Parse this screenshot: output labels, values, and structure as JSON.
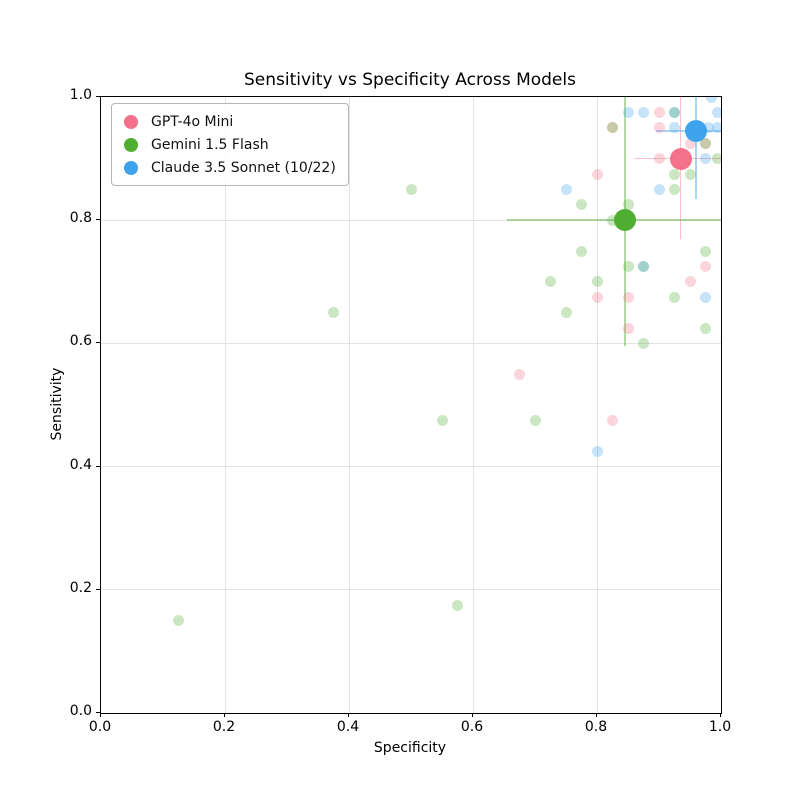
{
  "chart_data": {
    "type": "scatter",
    "title": "Sensitivity vs Specificity Across Models",
    "xlabel": "Specificity",
    "ylabel": "Sensitivity",
    "xlim": [
      0.0,
      1.0
    ],
    "ylim": [
      0.0,
      1.0
    ],
    "grid": true,
    "x_ticks": [
      {
        "value": 0.0,
        "label": "0.0"
      },
      {
        "value": 0.2,
        "label": "0.2"
      },
      {
        "value": 0.4,
        "label": "0.4"
      },
      {
        "value": 0.6,
        "label": "0.6"
      },
      {
        "value": 0.8,
        "label": "0.8"
      },
      {
        "value": 1.0,
        "label": "1.0"
      }
    ],
    "y_ticks": [
      {
        "value": 0.0,
        "label": "0.0"
      },
      {
        "value": 0.2,
        "label": "0.2"
      },
      {
        "value": 0.4,
        "label": "0.4"
      },
      {
        "value": 0.6,
        "label": "0.6"
      },
      {
        "value": 0.8,
        "label": "0.8"
      },
      {
        "value": 1.0,
        "label": "1.0"
      }
    ],
    "legend": {
      "position": "upper-left",
      "items": [
        {
          "label": "GPT-4o Mini",
          "color": "#F4718B"
        },
        {
          "label": "Gemini 1.5 Flash",
          "color": "#4FAE32"
        },
        {
          "label": "Claude 3.5 Sonnet (10/22)",
          "color": "#3FA2EC"
        }
      ]
    },
    "series": [
      {
        "name": "GPT-4o Mini",
        "color": "#F4718B",
        "mean": {
          "x": 0.935,
          "y": 0.9,
          "xerr": 0.075,
          "yerr": 0.13
        },
        "points": [
          [
            0.675,
            0.55
          ],
          [
            0.825,
            0.475
          ],
          [
            0.8,
            0.875
          ],
          [
            0.8,
            0.675
          ],
          [
            0.85,
            0.675
          ],
          [
            0.85,
            0.625
          ],
          [
            0.9,
            0.9
          ],
          [
            0.95,
            0.7
          ],
          [
            0.975,
            0.725
          ],
          [
            0.9,
            0.975
          ],
          [
            0.9,
            0.95
          ],
          [
            0.95,
            0.925
          ],
          [
            0.975,
            0.925
          ],
          [
            0.825,
            0.95
          ]
        ]
      },
      {
        "name": "Gemini 1.5 Flash",
        "color": "#4FAE32",
        "mean": {
          "x": 0.845,
          "y": 0.8,
          "xerr": 0.19,
          "yerr": 0.205
        },
        "points": [
          [
            0.125,
            0.15
          ],
          [
            0.575,
            0.175
          ],
          [
            0.375,
            0.65
          ],
          [
            0.55,
            0.475
          ],
          [
            0.7,
            0.475
          ],
          [
            0.5,
            0.85
          ],
          [
            0.75,
            0.65
          ],
          [
            0.725,
            0.7
          ],
          [
            0.775,
            0.75
          ],
          [
            0.775,
            0.825
          ],
          [
            0.8,
            0.7
          ],
          [
            0.85,
            0.725
          ],
          [
            0.875,
            0.725
          ],
          [
            0.925,
            0.675
          ],
          [
            0.975,
            0.75
          ],
          [
            0.975,
            0.625
          ],
          [
            0.875,
            0.6
          ],
          [
            0.925,
            0.875
          ],
          [
            0.95,
            0.875
          ],
          [
            0.925,
            0.85
          ],
          [
            0.85,
            0.825
          ],
          [
            0.825,
            0.8
          ],
          [
            0.925,
            0.975
          ],
          [
            0.975,
            0.925
          ],
          [
            0.825,
            0.95
          ],
          [
            0.995,
            0.9
          ]
        ]
      },
      {
        "name": "Claude 3.5 Sonnet (10/22)",
        "color": "#3FA2EC",
        "mean": {
          "x": 0.96,
          "y": 0.945,
          "xerr": 0.065,
          "yerr": 0.11
        },
        "points": [
          [
            0.8,
            0.425
          ],
          [
            0.75,
            0.85
          ],
          [
            0.975,
            0.675
          ],
          [
            0.875,
            0.725
          ],
          [
            0.85,
            0.975
          ],
          [
            0.875,
            0.975
          ],
          [
            0.925,
            0.95
          ],
          [
            0.9,
            0.85
          ],
          [
            0.98,
            0.95
          ],
          [
            0.995,
            0.95
          ],
          [
            0.995,
            0.975
          ],
          [
            0.975,
            0.9
          ],
          [
            0.985,
            1.0
          ],
          [
            0.925,
            0.975
          ]
        ]
      }
    ],
    "style": {
      "point_opacity": 0.3,
      "errorbar_opacity": 0.45,
      "point_diameter": 11,
      "mean_diameter": 22,
      "grid_color": "#e3e3e3"
    }
  }
}
